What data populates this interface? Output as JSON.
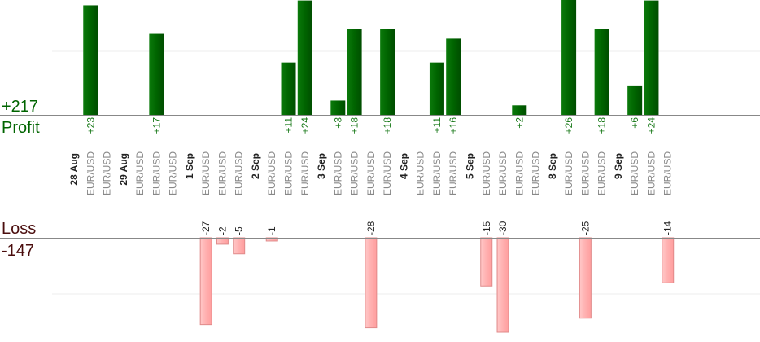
{
  "colors": {
    "profit_bar": "#006400",
    "profit_bar_light": "#0a7a0a",
    "loss_bar": "#ffb6b6",
    "loss_bar_border": "#e07f7f",
    "axis": "#888888",
    "grid": "#eeeeee"
  },
  "chart_data": {
    "type": "bar",
    "profit": {
      "total_label": "+217",
      "label": "Profit"
    },
    "loss": {
      "total_label": "-147",
      "label": "Loss"
    },
    "ylim_profit": [
      0,
      20
    ],
    "ylim_loss": [
      0,
      20
    ],
    "columns": [
      {
        "kind": "date",
        "label": "28 Aug"
      },
      {
        "kind": "pair",
        "label": "EUR/USD",
        "value": 23,
        "value_label": "+23"
      },
      {
        "kind": "pair",
        "label": "EUR/USD"
      },
      {
        "kind": "date",
        "label": "29 Aug"
      },
      {
        "kind": "pair",
        "label": "EUR/USD"
      },
      {
        "kind": "pair",
        "label": "EUR/USD",
        "value": 17,
        "value_label": "+17"
      },
      {
        "kind": "pair",
        "label": "EUR/USD"
      },
      {
        "kind": "date",
        "label": "1 Sep"
      },
      {
        "kind": "pair",
        "label": "EUR/USD",
        "value": -27,
        "value_label": "-27"
      },
      {
        "kind": "pair",
        "label": "EUR/USD",
        "value": -2,
        "value_label": "-2"
      },
      {
        "kind": "pair",
        "label": "EUR/USD",
        "value": -5,
        "value_label": "-5"
      },
      {
        "kind": "date",
        "label": "2 Sep"
      },
      {
        "kind": "pair",
        "label": "EUR/USD",
        "value": -1,
        "value_label": "-1"
      },
      {
        "kind": "pair",
        "label": "EUR/USD",
        "value": 11,
        "value_label": "+11"
      },
      {
        "kind": "pair",
        "label": "EUR/USD",
        "value": 24,
        "value_label": "+24"
      },
      {
        "kind": "date",
        "label": "3 Sep"
      },
      {
        "kind": "pair",
        "label": "EUR/USD",
        "value": 3,
        "value_label": "+3"
      },
      {
        "kind": "pair",
        "label": "EUR/USD",
        "value": 18,
        "value_label": "+18"
      },
      {
        "kind": "pair",
        "label": "EUR/USD",
        "value": -28,
        "value_label": "-28"
      },
      {
        "kind": "pair",
        "label": "EUR/USD",
        "value": 18,
        "value_label": "+18"
      },
      {
        "kind": "date",
        "label": "4 Sep"
      },
      {
        "kind": "pair",
        "label": "EUR/USD"
      },
      {
        "kind": "pair",
        "label": "EUR/USD",
        "value": 11,
        "value_label": "+11"
      },
      {
        "kind": "pair",
        "label": "EUR/USD",
        "value": 16,
        "value_label": "+16"
      },
      {
        "kind": "date",
        "label": "5 Sep"
      },
      {
        "kind": "pair",
        "label": "EUR/USD",
        "value": -15,
        "value_label": "-15"
      },
      {
        "kind": "pair",
        "label": "EUR/USD",
        "value": -30,
        "value_label": "-30"
      },
      {
        "kind": "pair",
        "label": "EUR/USD",
        "value": 2,
        "value_label": "+2"
      },
      {
        "kind": "pair",
        "label": "EUR/USD"
      },
      {
        "kind": "date",
        "label": "8 Sep"
      },
      {
        "kind": "pair",
        "label": "EUR/USD",
        "value": 26,
        "value_label": "+26"
      },
      {
        "kind": "pair",
        "label": "EUR/USD",
        "value": -25,
        "value_label": "-25"
      },
      {
        "kind": "pair",
        "label": "EUR/USD",
        "value": 18,
        "value_label": "+18"
      },
      {
        "kind": "date",
        "label": "9 Sep"
      },
      {
        "kind": "pair",
        "label": "EUR/USD",
        "value": 6,
        "value_label": "+6"
      },
      {
        "kind": "pair",
        "label": "EUR/USD",
        "value": 24,
        "value_label": "+24"
      },
      {
        "kind": "pair",
        "label": "EUR/USD",
        "value": -14,
        "value_label": "-14"
      }
    ]
  }
}
